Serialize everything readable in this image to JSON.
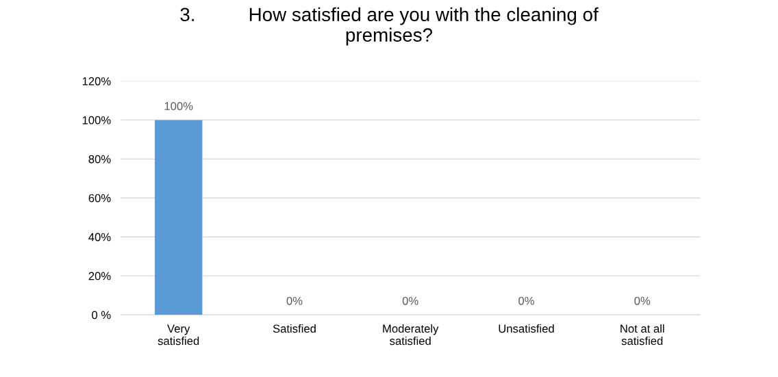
{
  "chart_data": {
    "type": "bar",
    "title": "3.          How satisfied are you with the cleaning of\npremises?",
    "categories": [
      "Very\nsatisfied",
      "Satisfied",
      "Moderately\nsatisfied",
      "Unsatisfied",
      "Not at all\nsatisfied"
    ],
    "values": [
      100,
      0,
      0,
      0,
      0
    ],
    "value_labels": [
      "100%",
      "0%",
      "0%",
      "0%",
      "0%"
    ],
    "color": "#5b9bd5",
    "ylim": [
      0,
      120
    ],
    "yticks": [
      {
        "value": 0,
        "label": "0 %"
      },
      {
        "value": 20,
        "label": "20%"
      },
      {
        "value": 40,
        "label": "40%"
      },
      {
        "value": 60,
        "label": "60%"
      },
      {
        "value": 80,
        "label": "80%"
      },
      {
        "value": 100,
        "label": "100%"
      },
      {
        "value": 120,
        "label": "120%"
      }
    ],
    "grid": "y",
    "legend": false
  }
}
